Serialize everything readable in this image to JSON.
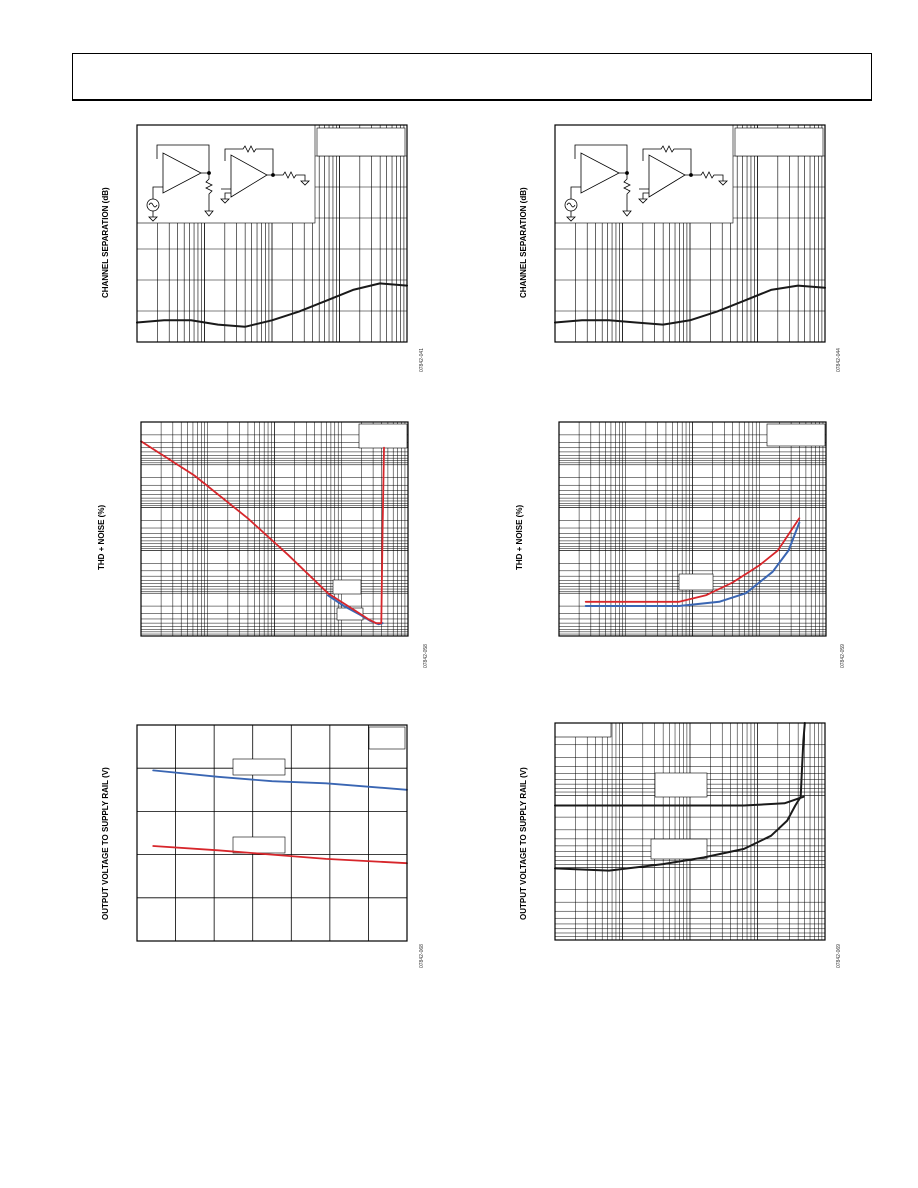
{
  "header": {
    "text": ""
  },
  "colors": {
    "red": "#d7262b",
    "blue": "#3a66b3",
    "black": "#1a1a1a",
    "grid": "#000000"
  },
  "figures": [
    {
      "id": "fig-ch-sep-1",
      "ylabel": "CHANNEL SEPARATION (dB)",
      "fig_id": "07842-041"
    },
    {
      "id": "fig-ch-sep-2",
      "ylabel": "CHANNEL SEPARATION (dB)",
      "fig_id": "07842-044"
    },
    {
      "id": "fig-thd-1",
      "ylabel": "THD + NOISE (%)",
      "fig_id": "07842-058"
    },
    {
      "id": "fig-thd-2",
      "ylabel": "THD + NOISE (%)",
      "fig_id": "07842-059"
    },
    {
      "id": "fig-vout-1",
      "ylabel": "OUTPUT VOLTAGE TO SUPPLY RAIL (V)",
      "fig_id": "07842-068"
    },
    {
      "id": "fig-vout-2",
      "ylabel": "OUTPUT VOLTAGE TO SUPPLY RAIL (V)",
      "fig_id": "07842-069"
    }
  ],
  "chart_data": [
    {
      "type": "line",
      "title": "",
      "xlabel": "",
      "ylabel": "CHANNEL SEPARATION (dB)",
      "x_scale": "log",
      "grid": true,
      "series": [
        {
          "x": [
            0,
            0.1,
            0.2,
            0.3,
            0.4,
            0.5,
            0.6,
            0.7,
            0.8,
            0.9,
            1.0
          ],
          "y": [
            0.09,
            0.1,
            0.1,
            0.08,
            0.07,
            0.1,
            0.14,
            0.19,
            0.24,
            0.27,
            0.26
          ]
        }
      ]
    },
    {
      "type": "line",
      "title": "",
      "xlabel": "",
      "ylabel": "CHANNEL SEPARATION (dB)",
      "x_scale": "log",
      "grid": true,
      "series": [
        {
          "x": [
            0,
            0.1,
            0.2,
            0.3,
            0.4,
            0.5,
            0.6,
            0.7,
            0.8,
            0.9,
            1.0
          ],
          "y": [
            0.09,
            0.1,
            0.1,
            0.09,
            0.08,
            0.1,
            0.14,
            0.19,
            0.24,
            0.26,
            0.25
          ]
        }
      ]
    },
    {
      "type": "line",
      "title": "",
      "xlabel": "",
      "ylabel": "THD + NOISE (%)",
      "x_scale": "log",
      "y_scale": "log",
      "grid": true,
      "series": [
        {
          "color": "red",
          "x": [
            0,
            0.2,
            0.4,
            0.55,
            0.7,
            0.8,
            0.85,
            0.88,
            0.9,
            0.905,
            0.91
          ],
          "y": [
            0.91,
            0.75,
            0.55,
            0.38,
            0.2,
            0.12,
            0.08,
            0.06,
            0.06,
            0.5,
            0.88
          ]
        },
        {
          "color": "blue",
          "x": [
            0.7,
            0.76,
            0.82,
            0.86,
            0.89,
            0.905
          ],
          "y": [
            0.19,
            0.14,
            0.1,
            0.07,
            0.055,
            0.06
          ]
        }
      ]
    },
    {
      "type": "line",
      "title": "",
      "xlabel": "",
      "ylabel": "THD + NOISE (%)",
      "x_scale": "log",
      "y_scale": "log",
      "grid": true,
      "series": [
        {
          "color": "red",
          "x": [
            0.1,
            0.3,
            0.45,
            0.55,
            0.65,
            0.75,
            0.82,
            0.9
          ],
          "y": [
            0.16,
            0.16,
            0.16,
            0.19,
            0.25,
            0.33,
            0.4,
            0.55
          ]
        },
        {
          "color": "blue",
          "x": [
            0.1,
            0.3,
            0.45,
            0.6,
            0.7,
            0.8,
            0.86,
            0.9
          ],
          "y": [
            0.14,
            0.14,
            0.14,
            0.16,
            0.2,
            0.3,
            0.4,
            0.53
          ]
        }
      ]
    },
    {
      "type": "line",
      "title": "",
      "xlabel": "",
      "ylabel": "OUTPUT VOLTAGE TO SUPPLY RAIL (V)",
      "grid": true,
      "series": [
        {
          "color": "blue",
          "x": [
            0.06,
            0.3,
            0.5,
            0.7,
            1.0
          ],
          "y": [
            0.79,
            0.76,
            0.74,
            0.73,
            0.7
          ]
        },
        {
          "color": "red",
          "x": [
            0.06,
            0.3,
            0.5,
            0.7,
            1.0
          ],
          "y": [
            0.44,
            0.42,
            0.4,
            0.38,
            0.36
          ]
        }
      ]
    },
    {
      "type": "line",
      "title": "",
      "xlabel": "",
      "ylabel": "OUTPUT VOLTAGE TO SUPPLY RAIL (V)",
      "x_scale": "log",
      "y_scale": "log",
      "grid": true,
      "series": [
        {
          "color": "black",
          "x": [
            0,
            0.2,
            0.4,
            0.55,
            0.7,
            0.8,
            0.86,
            0.89,
            0.91
          ],
          "y": [
            0.33,
            0.32,
            0.35,
            0.38,
            0.42,
            0.48,
            0.55,
            0.62,
            0.66
          ]
        },
        {
          "color": "black",
          "x": [
            0,
            0.3,
            0.5,
            0.7,
            0.85,
            0.92
          ],
          "y": [
            0.62,
            0.62,
            0.62,
            0.62,
            0.63,
            0.66
          ]
        },
        {
          "color": "black",
          "x": [
            0.91,
            0.915,
            0.92,
            0.925
          ],
          "y": [
            0.66,
            0.8,
            0.92,
            1.0
          ]
        }
      ]
    }
  ]
}
